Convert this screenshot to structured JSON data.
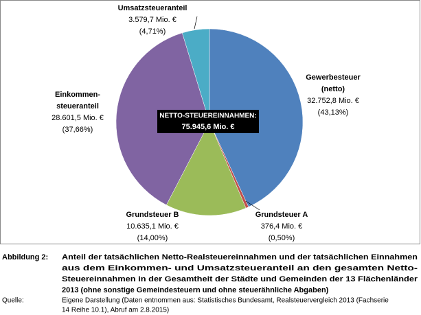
{
  "chart_data": {
    "type": "pie",
    "categories": [
      "Gewerbesteuer\n(netto)",
      "Grundsteuer A",
      "Grundsteuer B",
      "Einkommen-\nsteueranteil",
      "Umsatzsteueranteil"
    ],
    "values": [
      32752.8,
      376.4,
      10635.1,
      28601.5,
      3579.7
    ],
    "value_labels": [
      "32.752,8 Mio. €",
      "376,4 Mio. €",
      "10.635,1 Mio. €",
      "28.601,5 Mio. €",
      "3.579,7 Mio. €"
    ],
    "shares": [
      43.13,
      0.5,
      14.0,
      37.66,
      4.71
    ],
    "share_labels": [
      "(43,13%)",
      "(0,50%)",
      "(14,00%)",
      "(37,66%)",
      "(4,71%)"
    ],
    "colors": [
      "#4f81bd",
      "#c0504d",
      "#9bbb59",
      "#8064a2",
      "#4bacc6"
    ],
    "center_label": "NETTO-STEUEREINNAHMEN:",
    "center_value_label": "75.945,6 Mio. €"
  },
  "caption": {
    "label": "Abbildung 2:",
    "lines": [
      "Anteil der tatsächlichen Netto-Realsteuereinnahmen und der tatsächlichen Einnahmen",
      "aus dem Einkommen- und Umsatzsteueranteil an den gesamten Netto-",
      "Steuereinnahmen in der Gesamtheit der Städte und Gemeinden der 13 Flächenländer",
      "2013 (ohne sonstige Gemeindesteuern und ohne steuerähnliche Abgaben)"
    ]
  },
  "source": {
    "label": "Quelle:",
    "lines": [
      "Eigene Darstellung (Daten entnommen aus: Statistisches Bundesamt, Realsteuervergleich 2013 (Fachserie",
      "14 Reihe 10.1), Abruf am 2.8.2015)"
    ]
  }
}
